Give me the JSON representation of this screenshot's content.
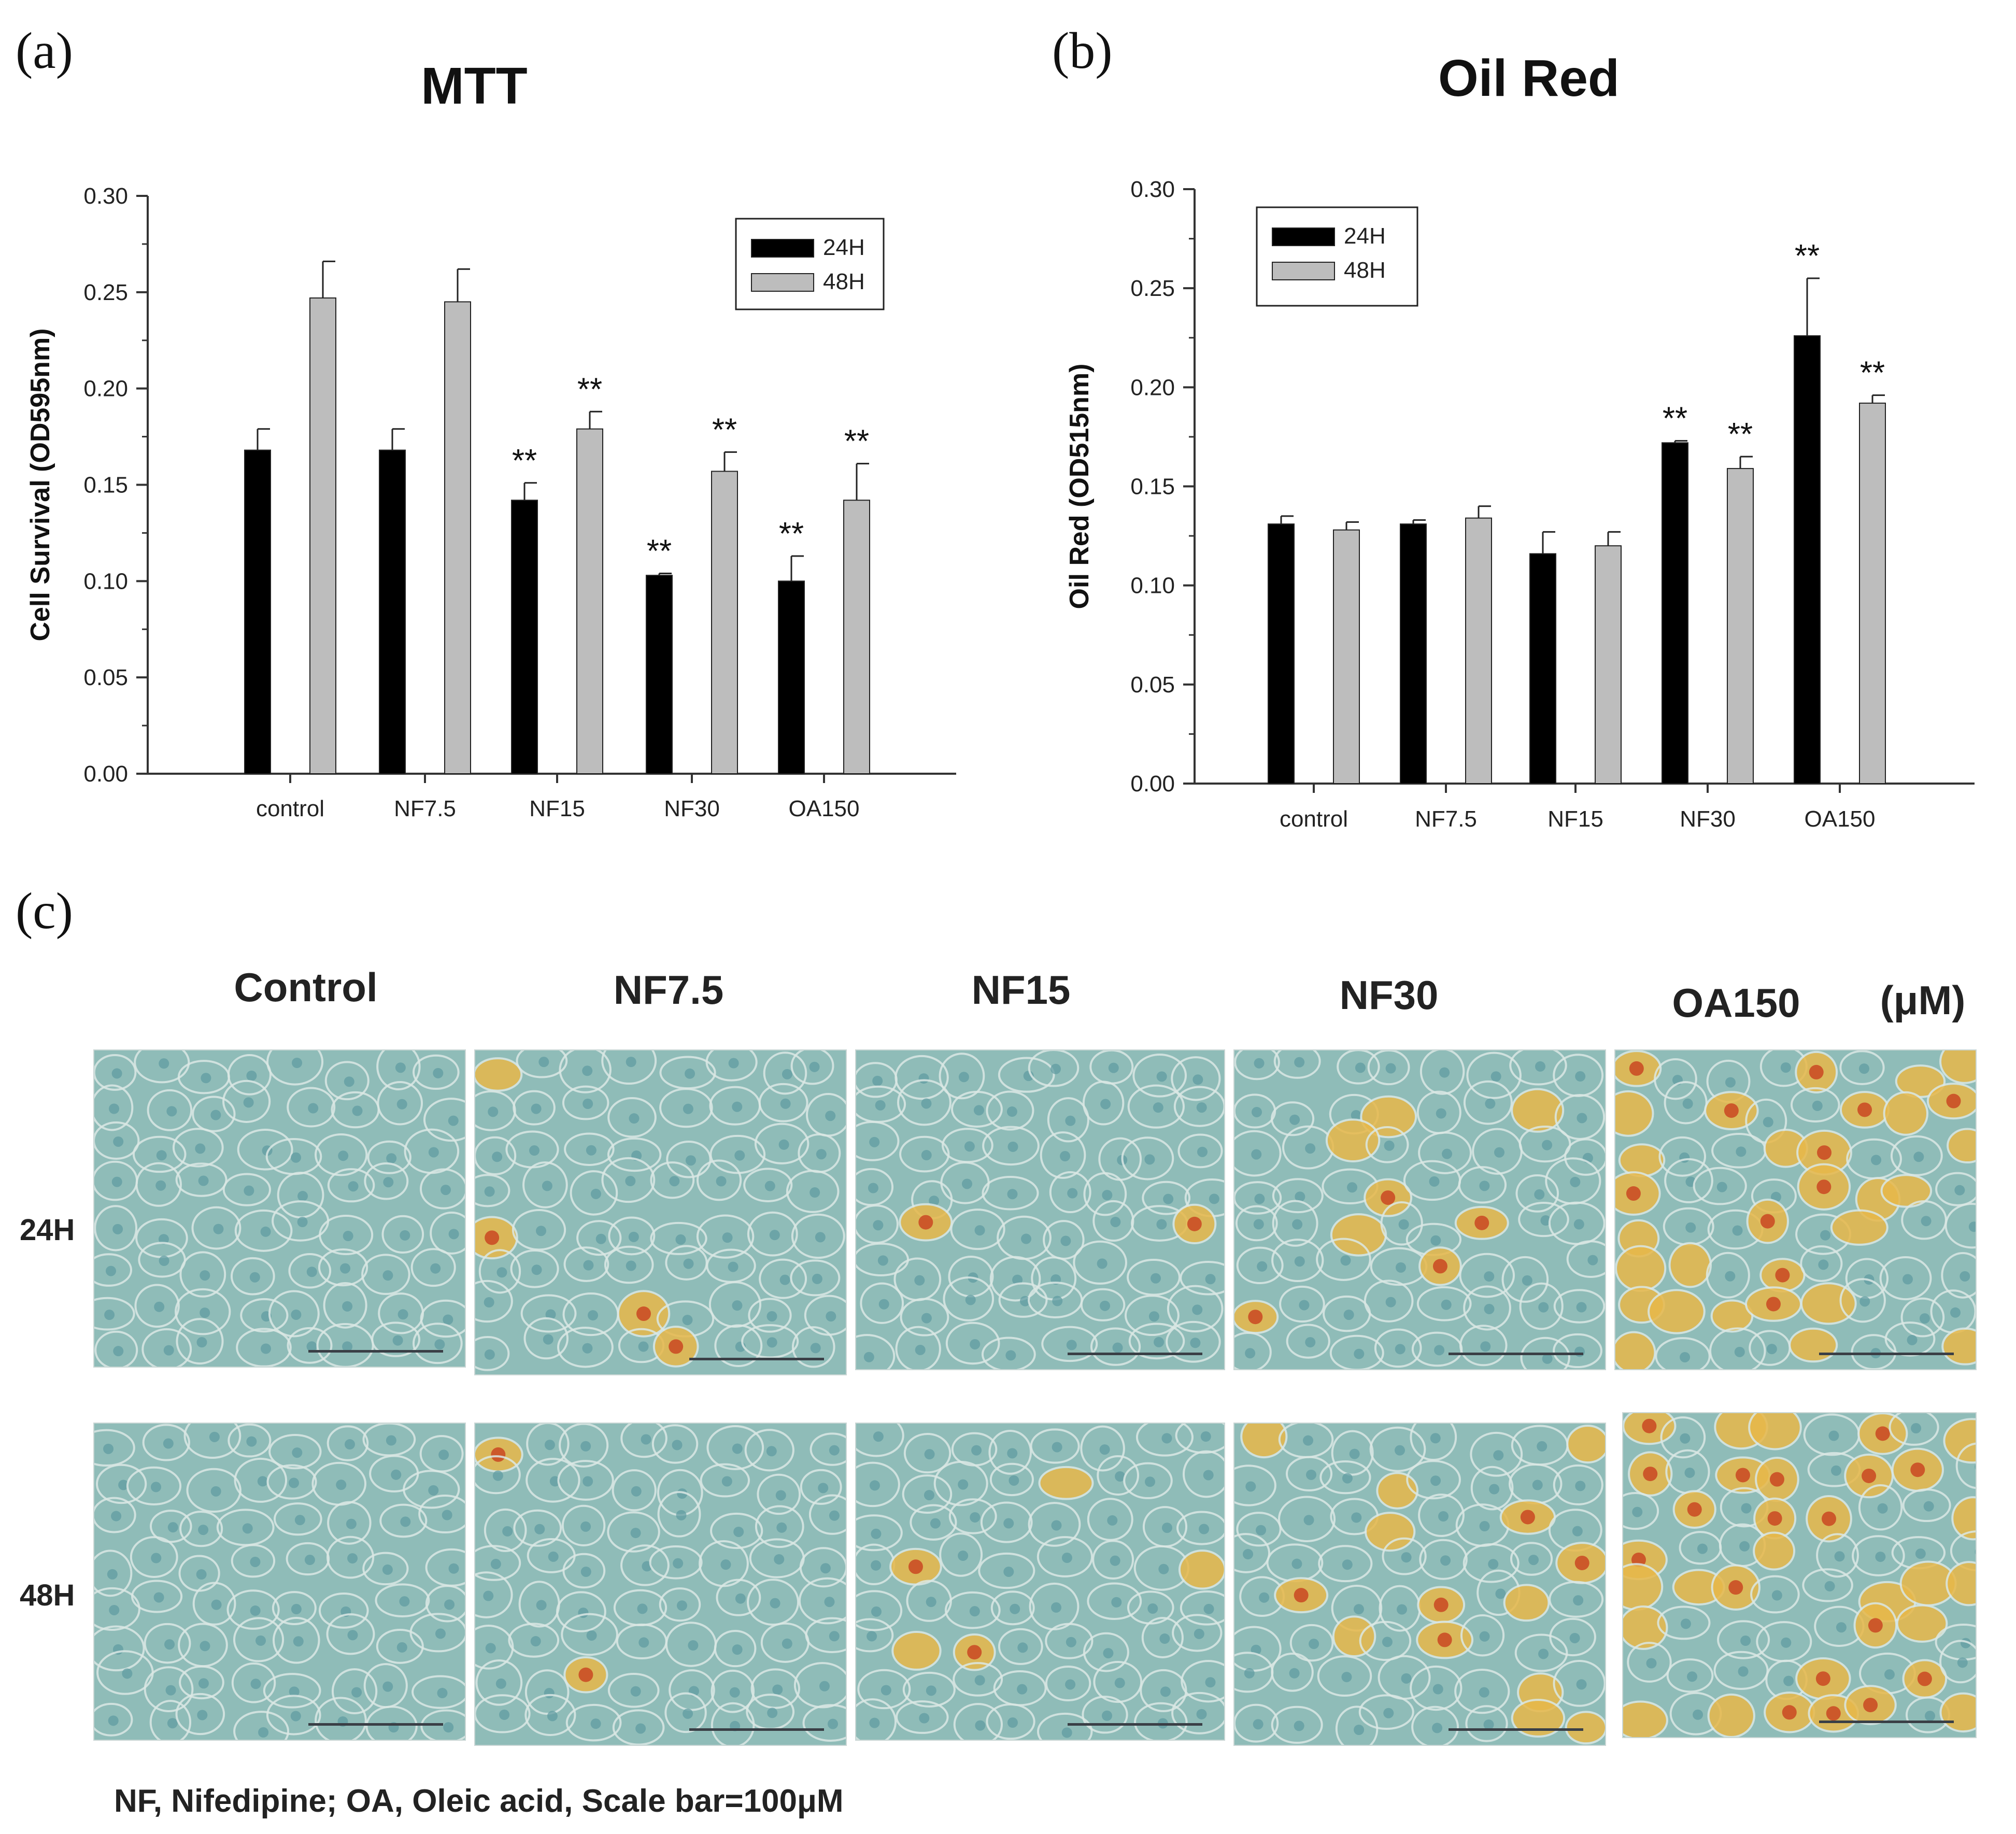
{
  "panels": {
    "a": {
      "label": "(a)"
    },
    "b": {
      "label": "(b)"
    },
    "c": {
      "label": "(c)"
    }
  },
  "chart_data": [
    {
      "type": "bar",
      "title": "MTT",
      "xlabel": "",
      "ylabel": "Cell Survival (OD595nm)",
      "ylim": [
        0,
        0.3
      ],
      "yticks": [
        "0.00",
        "0.05",
        "0.10",
        "0.15",
        "0.20",
        "0.25",
        "0.30"
      ],
      "categories": [
        "control",
        "NF7.5",
        "NF15",
        "NF30",
        "OA150"
      ],
      "legend_position": "top-right",
      "series": [
        {
          "name": "24H",
          "color": "#000000",
          "values": [
            0.168,
            0.168,
            0.142,
            0.103,
            0.1
          ],
          "errors": [
            0.011,
            0.011,
            0.009,
            0.001,
            0.013
          ],
          "marks": [
            "",
            "",
            "**",
            "**",
            "**"
          ]
        },
        {
          "name": "48H",
          "color": "#bdbdbd",
          "values": [
            0.247,
            0.245,
            0.179,
            0.157,
            0.142
          ],
          "errors": [
            0.019,
            0.017,
            0.009,
            0.01,
            0.019
          ],
          "marks": [
            "",
            "",
            "**",
            "**",
            "**"
          ]
        }
      ]
    },
    {
      "type": "bar",
      "title": "Oil Red",
      "xlabel": "",
      "ylabel": "Oil Red (OD515nm)",
      "ylim": [
        0,
        0.3
      ],
      "yticks": [
        "0.00",
        "0.05",
        "0.10",
        "0.15",
        "0.20",
        "0.25",
        "0.30"
      ],
      "categories": [
        "control",
        "NF7.5",
        "NF15",
        "NF30",
        "OA150"
      ],
      "legend_position": "top-left",
      "series": [
        {
          "name": "24H",
          "color": "#000000",
          "values": [
            0.131,
            0.131,
            0.116,
            0.172,
            0.226
          ],
          "errors": [
            0.004,
            0.002,
            0.011,
            0.001,
            0.029
          ],
          "marks": [
            "",
            "",
            "",
            "**",
            "**"
          ]
        },
        {
          "name": "48H",
          "color": "#bdbdbd",
          "values": [
            0.128,
            0.134,
            0.12,
            0.159,
            0.192
          ],
          "errors": [
            0.004,
            0.006,
            0.007,
            0.006,
            0.004
          ],
          "marks": [
            "",
            "",
            "",
            "**",
            "**"
          ]
        }
      ]
    }
  ],
  "micrographs": {
    "column_titles": [
      "Control",
      "NF7.5",
      "NF15",
      "NF30",
      "OA150",
      "(μM)"
    ],
    "row_labels": [
      "24H",
      "48H"
    ],
    "footnote": "NF, Nifedipine;  OA, Oleic acid, Scale bar=100μM",
    "colors": {
      "background": "#8fbcb8",
      "cell_edge": "#dbe8e4",
      "nucleus": "#5d9aa0",
      "lipid": "#e8b84a",
      "lipid_dark": "#c8401e"
    }
  }
}
